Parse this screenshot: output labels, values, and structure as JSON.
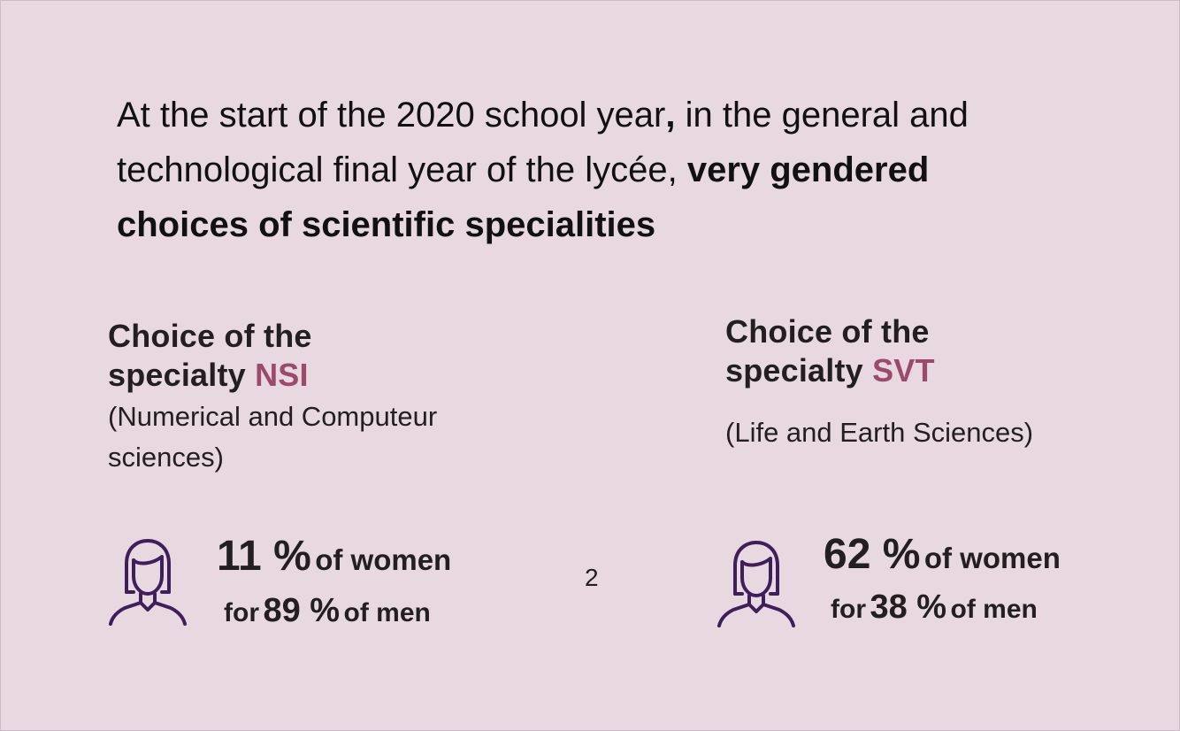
{
  "headline": {
    "part1": "At the start of the 2020 school year",
    "comma": ",",
    "part2": " in the general and technological final year of the lycée, ",
    "bold": "very gendered choices of scientific specialities"
  },
  "left_block": {
    "title_line1": "Choice of the",
    "title_line2_prefix": "specialty ",
    "title_acronym": "NSI",
    "subtitle": "(Numerical and Computeur sciences)",
    "icon": "woman-icon",
    "women_pct": "11 %",
    "women_suffix": "of women",
    "for_label": "for",
    "men_pct": "89 %",
    "men_suffix": "of men"
  },
  "right_block": {
    "title_line1": "Choice of the",
    "title_line2_prefix": "specialty ",
    "title_acronym": "SVT",
    "subtitle": "(Life and Earth Sciences)",
    "icon": "woman-icon",
    "women_pct": "62 %",
    "women_suffix": "of women",
    "for_label": "for",
    "men_pct": "38 %",
    "men_suffix": "of men"
  },
  "page_number": "2",
  "colors": {
    "background": "#e8d9e0",
    "accent": "#9b4a6b",
    "icon_stroke": "#3e1f5c",
    "text": "#231f20"
  }
}
